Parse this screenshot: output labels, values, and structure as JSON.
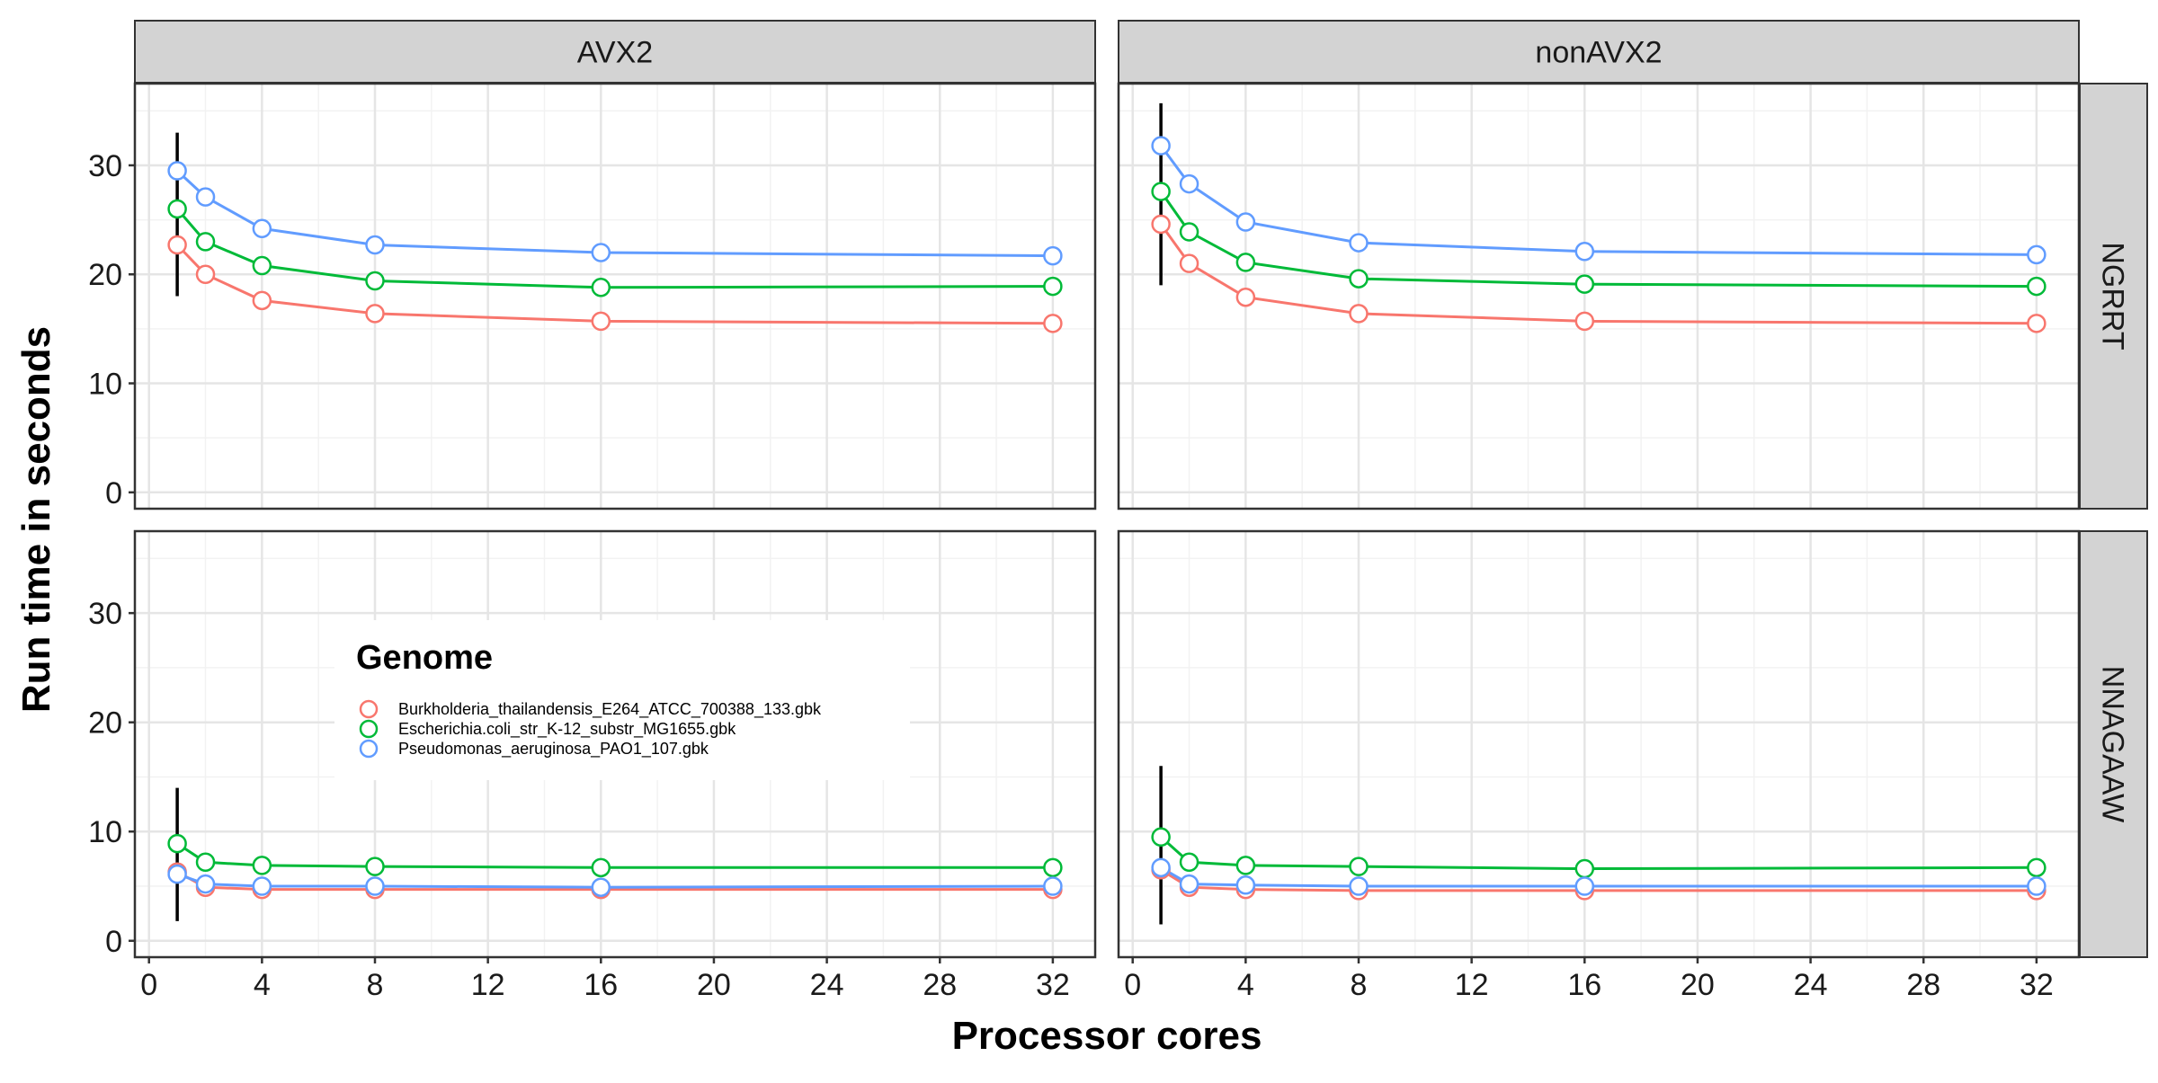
{
  "chart_data": {
    "type": "line",
    "xlabel": "Processor cores",
    "ylabel": "Run time in seconds",
    "x": [
      1,
      2,
      4,
      8,
      16,
      32
    ],
    "xlim": [
      -0.5,
      33.5
    ],
    "ylim": [
      -1.5,
      37.5
    ],
    "x_ticks": [
      0,
      4,
      8,
      12,
      16,
      20,
      24,
      28,
      32
    ],
    "y_ticks": [
      0,
      10,
      20,
      30
    ],
    "grid": true,
    "legend": {
      "title": "Genome",
      "placement": "inside bottom-left facet",
      "entries": [
        "Burkholderia_thailandensis_E264_ATCC_700388_133.gbk",
        "Escherichia.coli_str_K-12_substr_MG1655.gbk",
        "Pseudomonas_aeruginosa_PAO1_107.gbk"
      ]
    },
    "colors": {
      "Burkholderia": "#F8766D",
      "Escherichia": "#00BA38",
      "Pseudomonas": "#619CFF",
      "error_bar": "#000000"
    },
    "facet_columns": [
      "AVX2",
      "nonAVX2"
    ],
    "facet_rows": [
      "NGRRT",
      "NNAGAAW"
    ],
    "panels": [
      {
        "col": "AVX2",
        "row": "NGRRT",
        "series": [
          {
            "name": "Burkholderia_thailandensis_E264_ATCC_700388_133.gbk",
            "values": [
              22.7,
              20.0,
              17.6,
              16.4,
              15.7,
              15.5
            ]
          },
          {
            "name": "Escherichia.coli_str_K-12_substr_MG1655.gbk",
            "values": [
              26.0,
              23.0,
              20.8,
              19.4,
              18.8,
              18.9
            ]
          },
          {
            "name": "Pseudomonas_aeruginosa_PAO1_107.gbk",
            "values": [
              29.5,
              27.1,
              24.2,
              22.7,
              22.0,
              21.7
            ]
          }
        ],
        "error_bar": {
          "x": 1,
          "low": 18.0,
          "high": 33.0
        }
      },
      {
        "col": "nonAVX2",
        "row": "NGRRT",
        "series": [
          {
            "name": "Burkholderia_thailandensis_E264_ATCC_700388_133.gbk",
            "values": [
              24.6,
              21.0,
              17.9,
              16.4,
              15.7,
              15.5
            ]
          },
          {
            "name": "Escherichia.coli_str_K-12_substr_MG1655.gbk",
            "values": [
              27.6,
              23.9,
              21.1,
              19.6,
              19.1,
              18.9
            ]
          },
          {
            "name": "Pseudomonas_aeruginosa_PAO1_107.gbk",
            "values": [
              31.8,
              28.3,
              24.8,
              22.9,
              22.1,
              21.8
            ]
          }
        ],
        "error_bar": {
          "x": 1,
          "low": 19.0,
          "high": 35.7
        }
      },
      {
        "col": "AVX2",
        "row": "NNAGAAW",
        "series": [
          {
            "name": "Burkholderia_thailandensis_E264_ATCC_700388_133.gbk",
            "values": [
              6.3,
              4.9,
              4.7,
              4.7,
              4.7,
              4.7
            ]
          },
          {
            "name": "Escherichia.coli_str_K-12_substr_MG1655.gbk",
            "values": [
              8.9,
              7.2,
              6.9,
              6.8,
              6.7,
              6.7
            ]
          },
          {
            "name": "Pseudomonas_aeruginosa_PAO1_107.gbk",
            "values": [
              6.1,
              5.2,
              5.0,
              5.0,
              4.9,
              5.0
            ]
          }
        ],
        "error_bar": {
          "x": 1,
          "low": 1.8,
          "high": 14.0
        }
      },
      {
        "col": "nonAVX2",
        "row": "NNAGAAW",
        "series": [
          {
            "name": "Burkholderia_thailandensis_E264_ATCC_700388_133.gbk",
            "values": [
              6.5,
              4.9,
              4.7,
              4.6,
              4.6,
              4.6
            ]
          },
          {
            "name": "Escherichia.coli_str_K-12_substr_MG1655.gbk",
            "values": [
              9.5,
              7.2,
              6.9,
              6.8,
              6.6,
              6.7
            ]
          },
          {
            "name": "Pseudomonas_aeruginosa_PAO1_107.gbk",
            "values": [
              6.7,
              5.2,
              5.1,
              5.0,
              5.0,
              5.0
            ]
          }
        ],
        "error_bar": {
          "x": 1,
          "low": 1.5,
          "high": 16.0
        }
      }
    ]
  }
}
